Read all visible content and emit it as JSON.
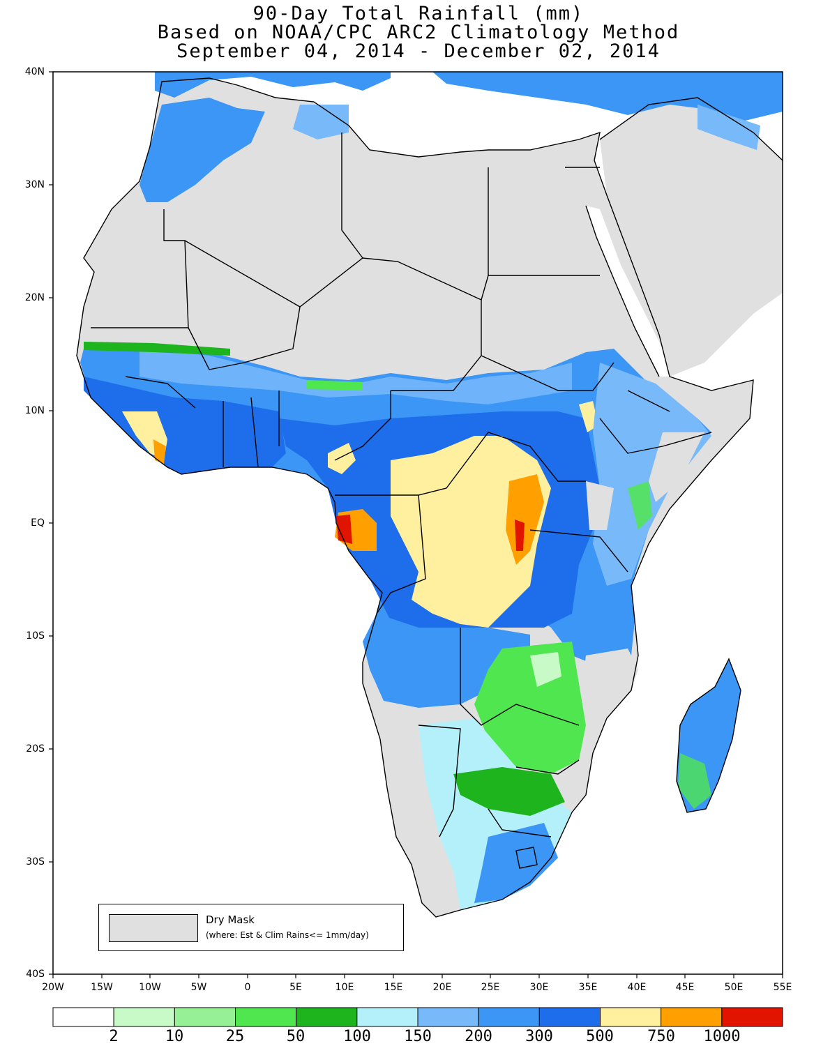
{
  "title": {
    "line1": "90-Day Total Rainfall (mm)",
    "line2": "Based on NOAA/CPC ARC2 Climatology Method",
    "line3": "September 04, 2014 - December 02, 2014"
  },
  "axes": {
    "lat_labels": [
      "40N",
      "30N",
      "20N",
      "10N",
      "EQ",
      "10S",
      "20S",
      "30S",
      "40S"
    ],
    "lon_labels": [
      "20W",
      "15W",
      "10W",
      "5W",
      "0",
      "5E",
      "10E",
      "15E",
      "20E",
      "25E",
      "30E",
      "35E",
      "40E",
      "45E",
      "50E",
      "55E"
    ],
    "lat_range": [
      -40,
      40
    ],
    "lon_range": [
      -20,
      55
    ]
  },
  "legend": {
    "title": "Dry Mask",
    "note": "(where: Est & Clim Rains<= 1mm/day)",
    "color": "#e0e0e0"
  },
  "colorbar": {
    "labels": [
      "2",
      "10",
      "25",
      "50",
      "100",
      "150",
      "200",
      "300",
      "500",
      "750",
      "1000"
    ],
    "colors": [
      "#ffffff",
      "#c8fac8",
      "#96f096",
      "#50e650",
      "#1eb41e",
      "#b4f0fa",
      "#78b9fa",
      "#3c96f5",
      "#1e6eeb",
      "#fff0a0",
      "#ffa000",
      "#e11400"
    ]
  }
}
